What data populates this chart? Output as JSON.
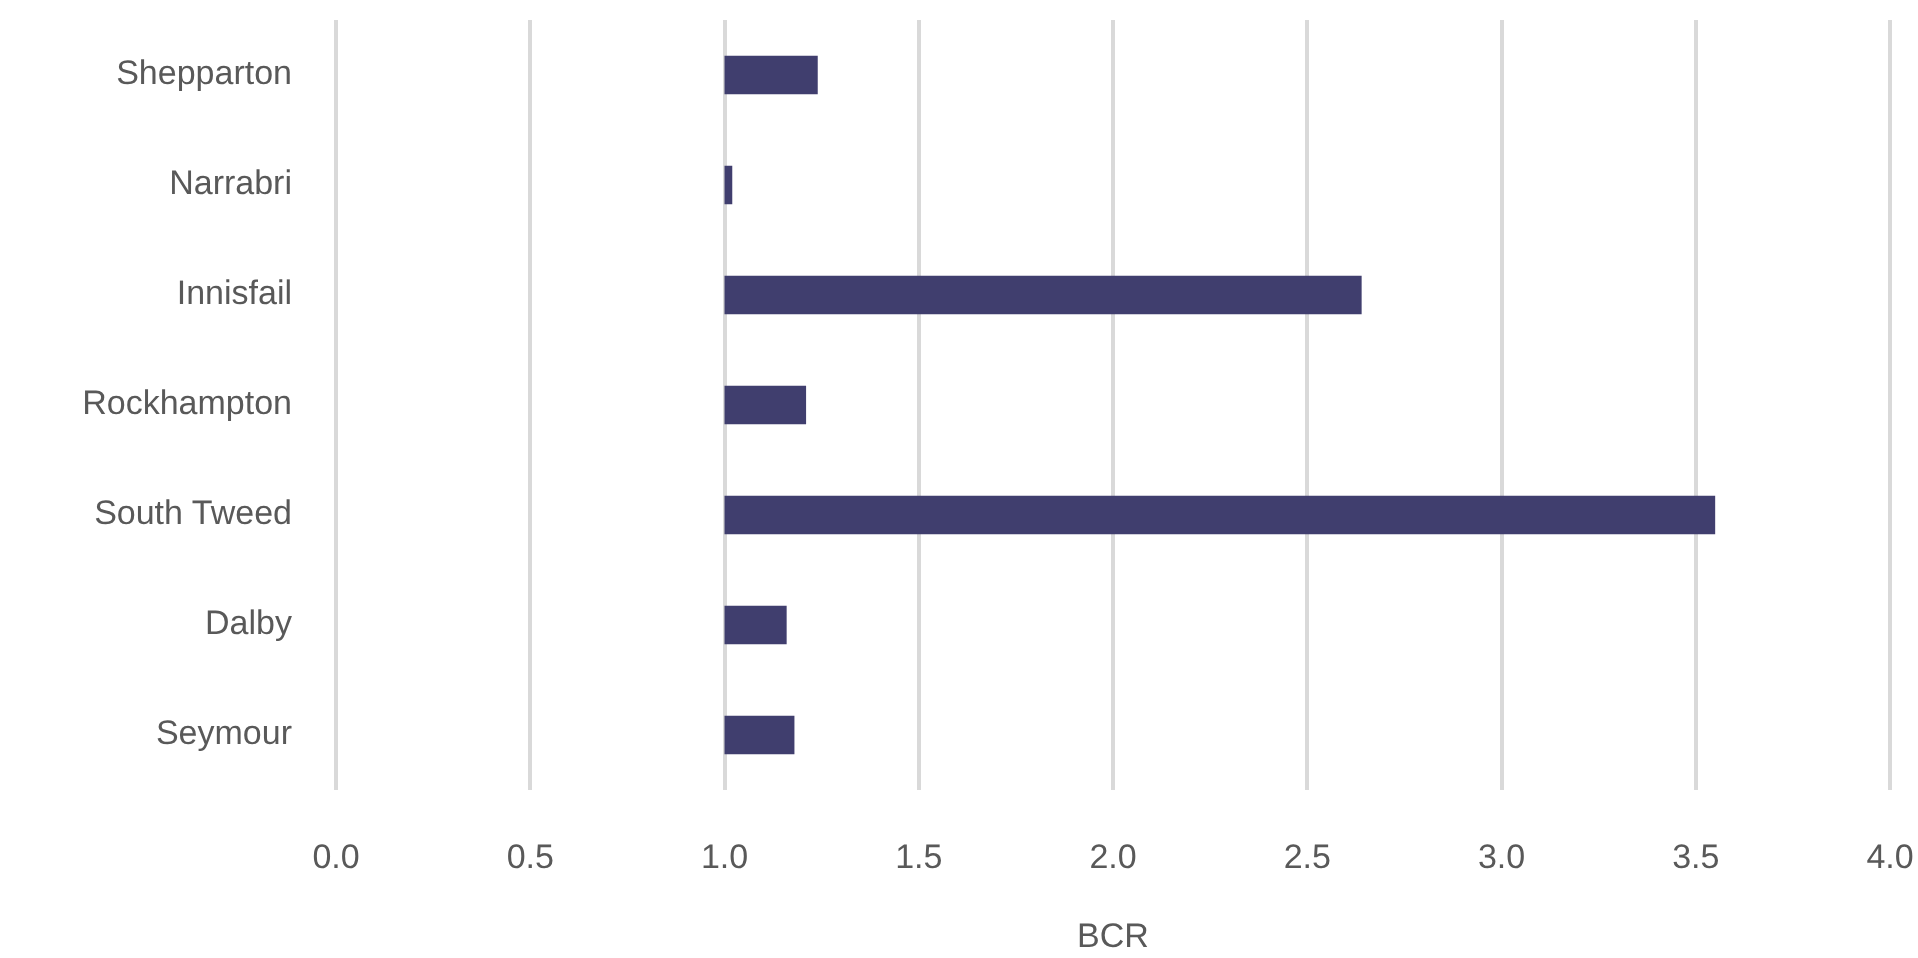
{
  "chart_data": {
    "type": "bar",
    "orientation": "horizontal",
    "xlabel": "BCR",
    "categories": [
      "Shepparton",
      "Narrabri",
      "Innisfail",
      "Rockhampton",
      "South Tweed",
      "Dalby",
      "Seymour"
    ],
    "values": [
      0.24,
      0.02,
      1.64,
      0.21,
      2.55,
      0.16,
      0.18
    ],
    "base": [
      1,
      1,
      1,
      1,
      1,
      1,
      1
    ],
    "color": "#403e6e",
    "xlim": [
      0,
      4
    ],
    "xticks": [
      {
        "value": 0,
        "label": "0.0"
      },
      0.5,
      {
        "value": 1,
        "label": "1.0"
      },
      1.5,
      {
        "value": 2,
        "label": "2.0"
      },
      2.5,
      {
        "value": 3,
        "label": "3.0"
      },
      3.5,
      {
        "value": 4,
        "label": "4.0"
      }
    ],
    "grid": "x",
    "legend": false
  }
}
